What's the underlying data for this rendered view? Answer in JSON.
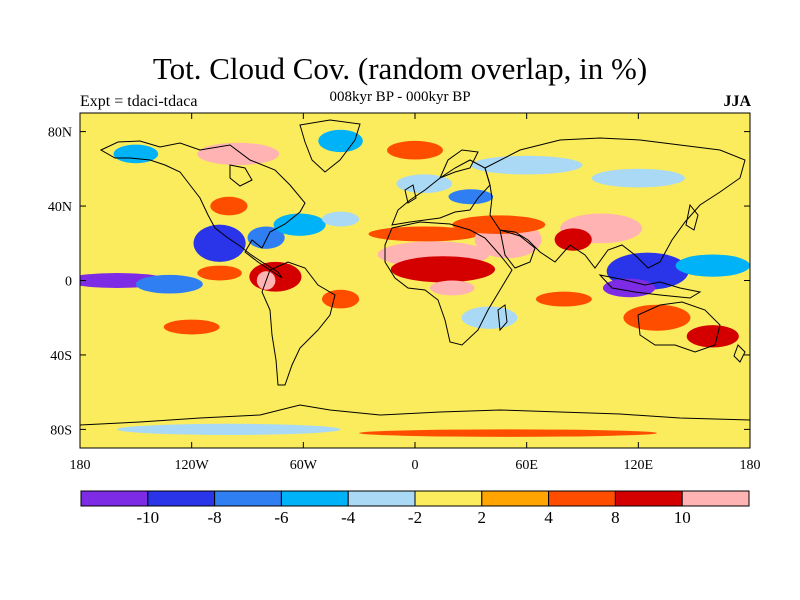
{
  "title": "Tot. Cloud Cov. (random overlap, in %)",
  "subtitle": "008kyr BP - 000kyr BP",
  "experiment_label": "Expt = tdaci-tdaca",
  "season_label": "JJA",
  "map_data": {
    "projection": "cylindrical-equidistant",
    "lon_range": [
      -180,
      180
    ],
    "lat_range": [
      -90,
      90
    ],
    "x_ticks": [
      {
        "value": -180,
        "label": "180"
      },
      {
        "value": -120,
        "label": "120W"
      },
      {
        "value": -60,
        "label": "60W"
      },
      {
        "value": 0,
        "label": "0"
      },
      {
        "value": 60,
        "label": "60E"
      },
      {
        "value": 120,
        "label": "120E"
      },
      {
        "value": 180,
        "label": "180"
      }
    ],
    "y_ticks": [
      {
        "value": 80,
        "label": "80N"
      },
      {
        "value": 40,
        "label": "40N"
      },
      {
        "value": 0,
        "label": "0"
      },
      {
        "value": -40,
        "label": "40S"
      },
      {
        "value": -80,
        "label": "80S"
      }
    ],
    "background_value": 0,
    "anomaly_patches": [
      {
        "lon": -160,
        "lat": 0,
        "rlon": 28,
        "rlat": 4,
        "value": -11
      },
      {
        "lon": -132,
        "lat": -2,
        "rlon": 18,
        "rlat": 5,
        "value": -7
      },
      {
        "lon": -105,
        "lat": 20,
        "rlon": 14,
        "rlat": 10,
        "value": -9
      },
      {
        "lon": -80,
        "lat": 23,
        "rlon": 10,
        "rlat": 6,
        "value": -7
      },
      {
        "lon": -62,
        "lat": 30,
        "rlon": 14,
        "rlat": 6,
        "value": -5
      },
      {
        "lon": -40,
        "lat": 33,
        "rlon": 10,
        "rlat": 4,
        "value": -3
      },
      {
        "lon": -75,
        "lat": 2,
        "rlon": 14,
        "rlat": 8,
        "value": 9
      },
      {
        "lon": -80,
        "lat": 0,
        "rlon": 5,
        "rlat": 5,
        "value": 11
      },
      {
        "lon": -105,
        "lat": 4,
        "rlon": 12,
        "rlat": 4,
        "value": 7
      },
      {
        "lon": -95,
        "lat": 68,
        "rlon": 22,
        "rlat": 6,
        "value": 11
      },
      {
        "lon": -100,
        "lat": 40,
        "rlon": 10,
        "rlat": 5,
        "value": 7
      },
      {
        "lon": -150,
        "lat": 68,
        "rlon": 12,
        "rlat": 5,
        "value": -5
      },
      {
        "lon": -40,
        "lat": 75,
        "rlon": 12,
        "rlat": 6,
        "value": -5
      },
      {
        "lon": 10,
        "lat": 14,
        "rlon": 30,
        "rlat": 7,
        "value": 11
      },
      {
        "lon": 15,
        "lat": 6,
        "rlon": 28,
        "rlat": 7,
        "value": 9
      },
      {
        "lon": 5,
        "lat": 25,
        "rlon": 30,
        "rlat": 4,
        "value": 7
      },
      {
        "lon": 50,
        "lat": 22,
        "rlon": 18,
        "rlat": 10,
        "value": 11
      },
      {
        "lon": 45,
        "lat": 30,
        "rlon": 25,
        "rlat": 5,
        "value": 7
      },
      {
        "lon": 100,
        "lat": 28,
        "rlon": 22,
        "rlat": 8,
        "value": 11
      },
      {
        "lon": 85,
        "lat": 22,
        "rlon": 10,
        "rlat": 6,
        "value": 9
      },
      {
        "lon": 20,
        "lat": -4,
        "rlon": 12,
        "rlat": 4,
        "value": 11
      },
      {
        "lon": 5,
        "lat": 52,
        "rlon": 15,
        "rlat": 5,
        "value": -3
      },
      {
        "lon": 30,
        "lat": 45,
        "rlon": 12,
        "rlat": 4,
        "value": -7
      },
      {
        "lon": 60,
        "lat": 62,
        "rlon": 30,
        "rlat": 5,
        "value": -3
      },
      {
        "lon": 120,
        "lat": 55,
        "rlon": 25,
        "rlat": 5,
        "value": -3
      },
      {
        "lon": 125,
        "lat": 5,
        "rlon": 22,
        "rlat": 10,
        "value": -9
      },
      {
        "lon": 115,
        "lat": -4,
        "rlon": 14,
        "rlat": 5,
        "value": -11
      },
      {
        "lon": 160,
        "lat": 8,
        "rlon": 20,
        "rlat": 6,
        "value": -5
      },
      {
        "lon": 130,
        "lat": -20,
        "rlon": 18,
        "rlat": 7,
        "value": 7
      },
      {
        "lon": 160,
        "lat": -30,
        "rlon": 14,
        "rlat": 6,
        "value": 9
      },
      {
        "lon": 0,
        "lat": 70,
        "rlon": 15,
        "rlat": 5,
        "value": 5
      },
      {
        "lon": -40,
        "lat": -10,
        "rlon": 10,
        "rlat": 5,
        "value": 5
      },
      {
        "lon": -120,
        "lat": -25,
        "rlon": 15,
        "rlat": 4,
        "value": 7
      },
      {
        "lon": 40,
        "lat": -20,
        "rlon": 15,
        "rlat": 6,
        "value": -3
      },
      {
        "lon": 80,
        "lat": -10,
        "rlon": 15,
        "rlat": 4,
        "value": 5
      },
      {
        "lon": -100,
        "lat": -80,
        "rlon": 60,
        "rlat": 3,
        "value": -3
      },
      {
        "lon": 50,
        "lat": -82,
        "rlon": 80,
        "rlat": 2,
        "value": 5
      }
    ]
  },
  "colorbar": {
    "colors": [
      "#7e2be6",
      "#2a34e8",
      "#2f7ff3",
      "#00b2f7",
      "#a9d9f5",
      "#fbec5d",
      "#ffa400",
      "#ff4d00",
      "#d40000",
      "#ffb3b3"
    ],
    "labels": [
      "-10",
      "-8",
      "-6",
      "-4",
      "-2",
      "2",
      "4",
      "8",
      "10"
    ]
  }
}
